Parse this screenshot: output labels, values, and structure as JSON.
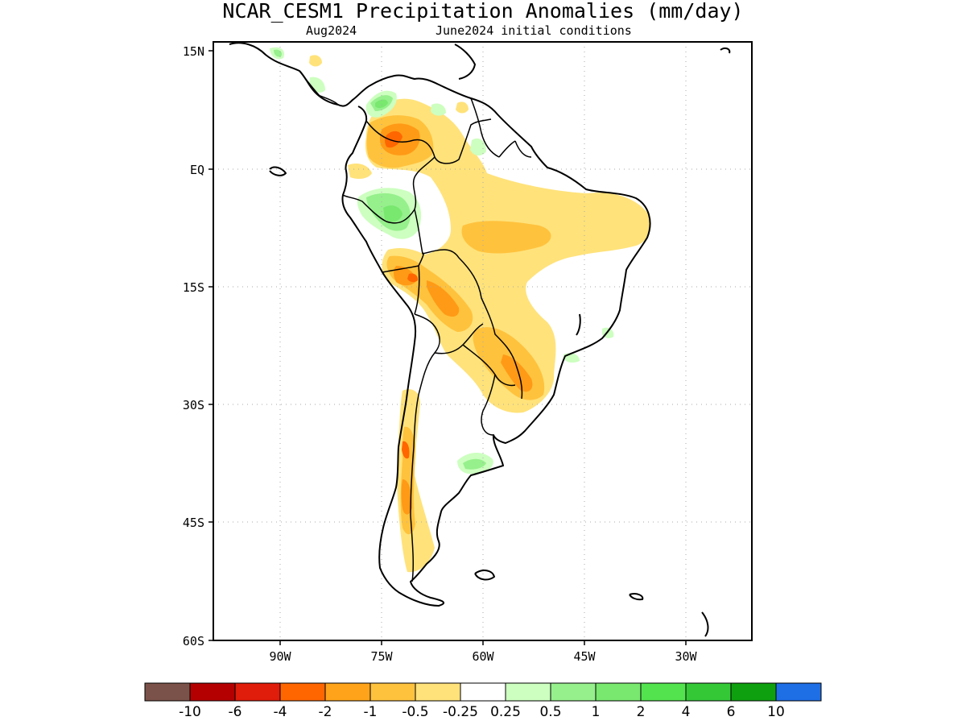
{
  "title": "NCAR_CESM1 Precipitation Anomalies (mm/day)",
  "subtitle_left": "Aug2024",
  "subtitle_right": "June2024 initial conditions",
  "lat_ticks": [
    "15N",
    "EQ",
    "15S",
    "30S",
    "45S",
    "60S"
  ],
  "lon_ticks": [
    "90W",
    "75W",
    "60W",
    "45W",
    "30W"
  ],
  "colorbar": {
    "colors": [
      "#7b5249",
      "#b40000",
      "#e01c0a",
      "#ff6600",
      "#ffa31a",
      "#ffc23d",
      "#ffe27a",
      "#ffffff",
      "#cdffc0",
      "#96f08c",
      "#78e86e",
      "#52e34e",
      "#34c837",
      "#0fa00f",
      "#1e6ee6"
    ],
    "labels": [
      "-10",
      "-6",
      "-4",
      "-2",
      "-1",
      "-0.5",
      "-0.25",
      "0.25",
      "0.5",
      "1",
      "2",
      "4",
      "6",
      "10"
    ]
  }
}
